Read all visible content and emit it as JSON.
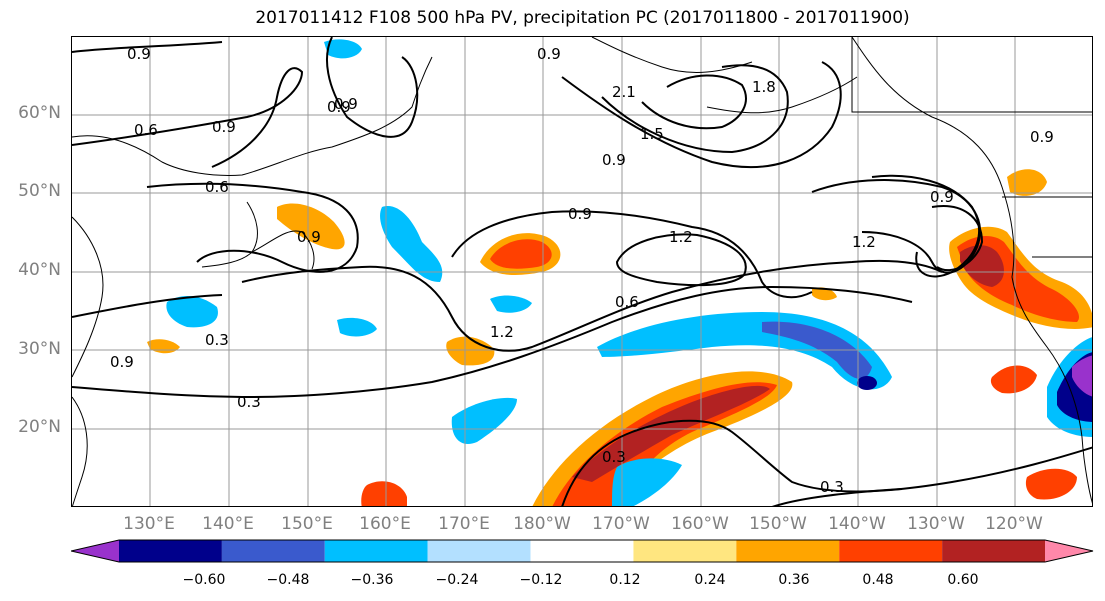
{
  "title": "2017011412 F108 500 hPa PV, precipitation PC (2017011800 - 2017011900)",
  "colors": {
    "land_lines": "#000000",
    "grid": "#999999",
    "pv_contour": "#000000"
  },
  "lat_labels": [
    "60°N",
    "50°N",
    "40°N",
    "30°N",
    "20°N"
  ],
  "lon_labels": [
    "130°E",
    "140°E",
    "150°E",
    "160°E",
    "170°E",
    "180°W",
    "170°W",
    "160°W",
    "150°W",
    "140°W",
    "130°W",
    "120°W"
  ],
  "contour_labels": [
    "0.9",
    "0.9",
    "0.6",
    "0.9",
    "0.9",
    "0.6",
    "2.1",
    "1.5",
    "1.8",
    "0.9",
    "0.9",
    "0.9",
    "1.2",
    "0.6",
    "1.2",
    "0.3",
    "0.3",
    "0.3",
    "0.3",
    "0.9",
    "1.2",
    "0.9",
    "0.9",
    "0.9"
  ],
  "colorbar": {
    "bins": [
      "#9932cc",
      "#00008b",
      "#3a5acd",
      "#00bfff",
      "#b3e0ff",
      "#ffffff",
      "#ffe680",
      "#ffa500",
      "#ff4000",
      "#b22222",
      "#ff88aa"
    ],
    "tick_labels": [
      "−0.60",
      "−0.48",
      "−0.36",
      "−0.24",
      "−0.12",
      "0.12",
      "0.24",
      "0.36",
      "0.48",
      "0.60"
    ]
  }
}
